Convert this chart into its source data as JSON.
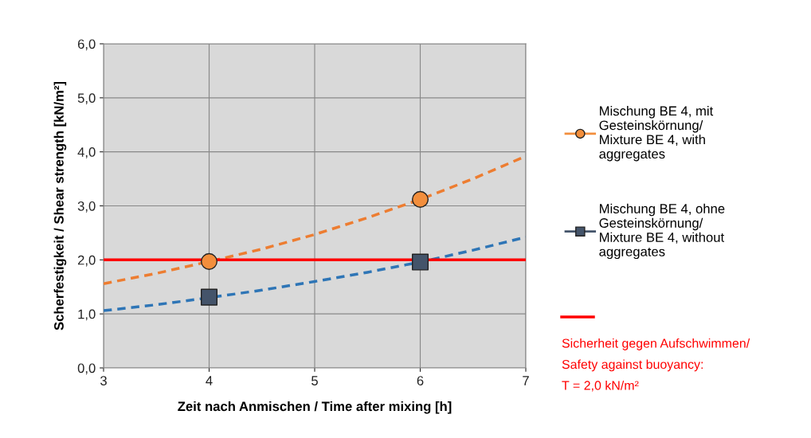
{
  "chart_data": {
    "type": "scatter",
    "xlabel": "Zeit nach Anmischen / Time after mixing [h]",
    "ylabel": "Scherfestigkeit / Shear strength [kN/m²]",
    "xlim": [
      3,
      7
    ],
    "xticks": [
      3,
      4,
      5,
      6,
      7
    ],
    "ylim": [
      0,
      6
    ],
    "yticks": [
      {
        "value": 0,
        "label": "0,0"
      },
      {
        "value": 1,
        "label": "1,0"
      },
      {
        "value": 2,
        "label": "2,0"
      },
      {
        "value": 3,
        "label": "3,0"
      },
      {
        "value": 4,
        "label": "4,0"
      },
      {
        "value": 5,
        "label": "5,0"
      },
      {
        "value": 6,
        "label": "6,0"
      }
    ],
    "grid": true,
    "legend": "right",
    "series": [
      {
        "type": "line",
        "line_style": "dashed",
        "marker": "none",
        "color": "#ed7d31",
        "x": [
          3,
          3.5,
          4,
          4.5,
          5,
          5.5,
          6,
          6.5,
          7
        ],
        "values": [
          1.56,
          1.75,
          1.97,
          2.2,
          2.47,
          2.78,
          3.12,
          3.5,
          3.92
        ]
      },
      {
        "type": "line",
        "line_style": "dashed",
        "marker": "none",
        "color": "#2e75b6",
        "x": [
          3,
          3.5,
          4,
          4.5,
          5,
          5.5,
          6,
          6.5,
          7
        ],
        "values": [
          1.06,
          1.17,
          1.3,
          1.44,
          1.6,
          1.77,
          1.96,
          2.18,
          2.42
        ]
      },
      {
        "name": "Mischung BE 4, mit\nGesteinskörnung/\nMixture BE 4, with\naggregates",
        "marker": "circle",
        "color": "#f28e3c",
        "x": [
          4,
          6
        ],
        "values": [
          1.97,
          3.12
        ]
      },
      {
        "name": "Mischung BE 4, ohne\nGesteinskörnung/\nMixture BE 4, without\naggregates",
        "marker": "square",
        "color": "#44546a",
        "x": [
          4,
          6
        ],
        "values": [
          1.31,
          1.96
        ]
      }
    ],
    "ref_lines": [
      {
        "axis": "y",
        "value": 2,
        "color": "#ff0000",
        "line_style": "solid",
        "label": "Sicherheit gegen Aufschwimmen/\nSafety against buoyancy:\nT = 2,0 kN/m²"
      }
    ]
  }
}
